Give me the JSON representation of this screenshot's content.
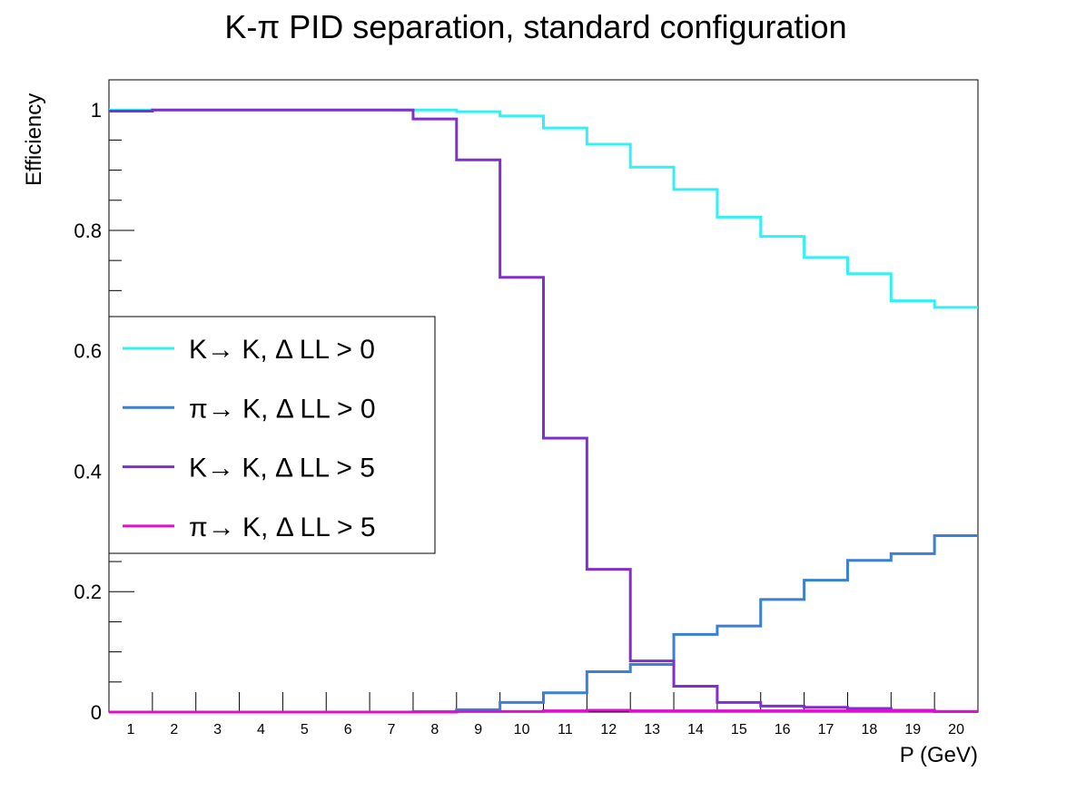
{
  "chart_data": {
    "type": "line",
    "step": true,
    "title": "K-π PID separation, standard configuration",
    "xlabel": "P (GeV)",
    "ylabel": "Efficiency",
    "xlim": [
      0.5,
      20.5
    ],
    "ylim": [
      0,
      1.05
    ],
    "x_ticks": [
      1,
      2,
      3,
      4,
      5,
      6,
      7,
      8,
      9,
      10,
      11,
      12,
      13,
      14,
      15,
      16,
      17,
      18,
      19,
      20
    ],
    "y_ticks": [
      {
        "value": 0,
        "label": "0"
      },
      {
        "value": 0.2,
        "label": "0.2"
      },
      {
        "value": 0.4,
        "label": "0.4"
      },
      {
        "value": 0.6,
        "label": "0.6"
      },
      {
        "value": 0.8,
        "label": "0.8"
      },
      {
        "value": 1,
        "label": "1"
      }
    ],
    "legend_position": "left-middle",
    "grid": false,
    "x": [
      1,
      2,
      3,
      4,
      5,
      6,
      7,
      8,
      9,
      10,
      11,
      12,
      13,
      14,
      15,
      16,
      17,
      18,
      19,
      20
    ],
    "series": [
      {
        "name": "K→ K, Δ LL > 0",
        "color": "#33f0f5",
        "values": [
          1.0,
          1.0,
          1.0,
          1.0,
          1.0,
          1.0,
          1.0,
          1.0,
          0.997,
          0.99,
          0.97,
          0.943,
          0.905,
          0.868,
          0.822,
          0.79,
          0.755,
          0.728,
          0.683,
          0.672
        ]
      },
      {
        "name": "π→ K, Δ LL > 0",
        "color": "#3d7fd1",
        "values": [
          0,
          0,
          0,
          0,
          0,
          0,
          0,
          0.001,
          0.004,
          0.016,
          0.032,
          0.067,
          0.079,
          0.129,
          0.143,
          0.187,
          0.219,
          0.252,
          0.263,
          0.293
        ]
      },
      {
        "name": "K→ K, Δ LL > 5",
        "color": "#7f2fcc",
        "values": [
          0.998,
          1.0,
          1.0,
          1.0,
          1.0,
          1.0,
          1.0,
          0.985,
          0.917,
          0.722,
          0.455,
          0.237,
          0.085,
          0.043,
          0.016,
          0.01,
          0.008,
          0.006,
          0.003,
          0.001
        ]
      },
      {
        "name": "π→ K, Δ LL > 5",
        "color": "#dd11cc",
        "values": [
          0,
          0,
          0,
          0,
          0,
          0,
          0,
          0,
          0.001,
          0.001,
          0.002,
          0.003,
          0.002,
          0.002,
          0.002,
          0.002,
          0.002,
          0.002,
          0.002,
          0.001
        ]
      }
    ]
  }
}
